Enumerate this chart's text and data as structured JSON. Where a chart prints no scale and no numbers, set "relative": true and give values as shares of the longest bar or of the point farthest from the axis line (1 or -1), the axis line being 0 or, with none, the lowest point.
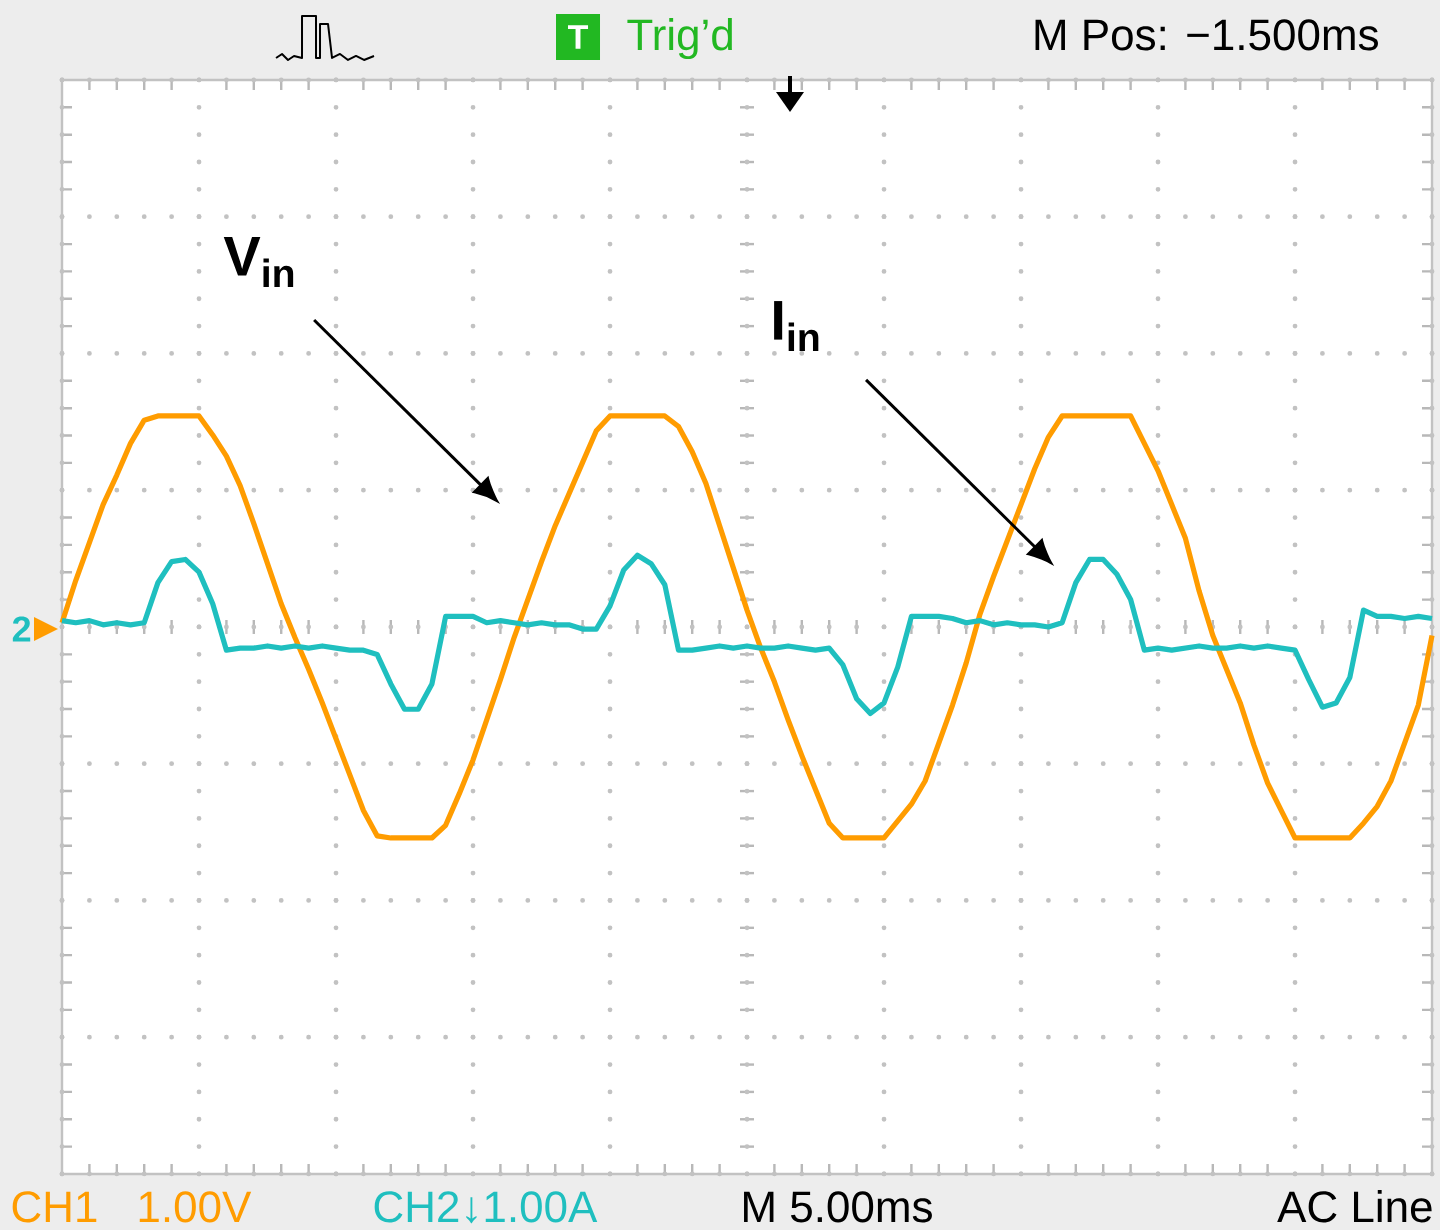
{
  "chart_data": {
    "type": "line",
    "relative": true,
    "grid": true,
    "categories": [
      null,
      null,
      null,
      null,
      null,
      null,
      null,
      null,
      null,
      null,
      null,
      null,
      null,
      null,
      null,
      null,
      null,
      null,
      null,
      null,
      null,
      null,
      null,
      null,
      null,
      null,
      null,
      null,
      null,
      null,
      null,
      null,
      null,
      null,
      null,
      null,
      null,
      null,
      null,
      null,
      null,
      null,
      null,
      null,
      null,
      null,
      null,
      null,
      null,
      null,
      null,
      null,
      null,
      null,
      null,
      null,
      null,
      null,
      null,
      null,
      null,
      null,
      null,
      null,
      null,
      null,
      null,
      null,
      null,
      null,
      null,
      null,
      null,
      null,
      null,
      null,
      null,
      null,
      null,
      null,
      null,
      null,
      null,
      null,
      null,
      null,
      null,
      null,
      null,
      null,
      null,
      null,
      null,
      null,
      null,
      null,
      null,
      null,
      null,
      null,
      null
    ],
    "series": [
      {
        "name": "V$_{in}$",
        "color": "#ff9c00",
        "values": [
          0.02,
          0.22,
          0.4,
          0.58,
          0.72,
          0.87,
          0.98,
          1.0,
          1.0,
          1.0,
          1.0,
          0.91,
          0.81,
          0.67,
          0.49,
          0.3,
          0.11,
          -0.05,
          -0.2,
          -0.36,
          -0.53,
          -0.7,
          -0.87,
          -0.99,
          -1.0,
          -1.0,
          -1.0,
          -1.0,
          -0.94,
          -0.79,
          -0.63,
          -0.44,
          -0.25,
          -0.05,
          0.13,
          0.31,
          0.48,
          0.63,
          0.78,
          0.93,
          1.0,
          1.0,
          1.0,
          1.0,
          1.0,
          0.95,
          0.83,
          0.68,
          0.48,
          0.28,
          0.08,
          -0.1,
          -0.26,
          -0.44,
          -0.61,
          -0.77,
          -0.93,
          -1.0,
          -1.0,
          -1.0,
          -1.0,
          -0.92,
          -0.84,
          -0.73,
          -0.55,
          -0.37,
          -0.17,
          0.06,
          0.24,
          0.41,
          0.58,
          0.75,
          0.9,
          1.0,
          1.0,
          1.0,
          1.0,
          1.0,
          1.0,
          0.87,
          0.74,
          0.58,
          0.42,
          0.17,
          -0.04,
          -0.2,
          -0.36,
          -0.56,
          -0.74,
          -0.87,
          -1.0,
          -1.0,
          -1.0,
          -1.0,
          -1.0,
          -0.93,
          -0.85,
          -0.73,
          -0.55,
          -0.37,
          -0.04
        ]
      },
      {
        "name": "I$_{in}$",
        "color": "#1fbfbf",
        "values": [
          0.03,
          0.02,
          0.03,
          0.01,
          0.02,
          0.01,
          0.02,
          0.21,
          0.31,
          0.32,
          0.26,
          0.11,
          -0.11,
          -0.1,
          -0.1,
          -0.09,
          -0.1,
          -0.09,
          -0.1,
          -0.09,
          -0.1,
          -0.11,
          -0.11,
          -0.13,
          -0.27,
          -0.39,
          -0.39,
          -0.27,
          0.05,
          0.05,
          0.05,
          0.02,
          0.03,
          0.02,
          0.01,
          0.02,
          0.01,
          0.01,
          -0.01,
          -0.01,
          0.1,
          0.27,
          0.34,
          0.3,
          0.2,
          -0.11,
          -0.11,
          -0.1,
          -0.09,
          -0.1,
          -0.09,
          -0.1,
          -0.1,
          -0.09,
          -0.1,
          -0.11,
          -0.1,
          -0.18,
          -0.34,
          -0.41,
          -0.36,
          -0.19,
          0.05,
          0.05,
          0.05,
          0.04,
          0.02,
          0.03,
          0.01,
          0.02,
          0.01,
          0.01,
          0.0,
          0.02,
          0.21,
          0.32,
          0.32,
          0.25,
          0.13,
          -0.11,
          -0.1,
          -0.11,
          -0.1,
          -0.09,
          -0.1,
          -0.1,
          -0.09,
          -0.1,
          -0.09,
          -0.1,
          -0.11,
          -0.25,
          -0.38,
          -0.36,
          -0.24,
          0.08,
          0.05,
          0.05,
          0.04,
          0.05,
          0.04
        ]
      }
    ],
    "annotations": [
      "T",
      "Trig’d",
      "M Pos: −1.500ms",
      "2",
      "CH1",
      "1.00V",
      "CH2↓1.00A",
      "M 5.00ms",
      "AC Line"
    ]
  }
}
